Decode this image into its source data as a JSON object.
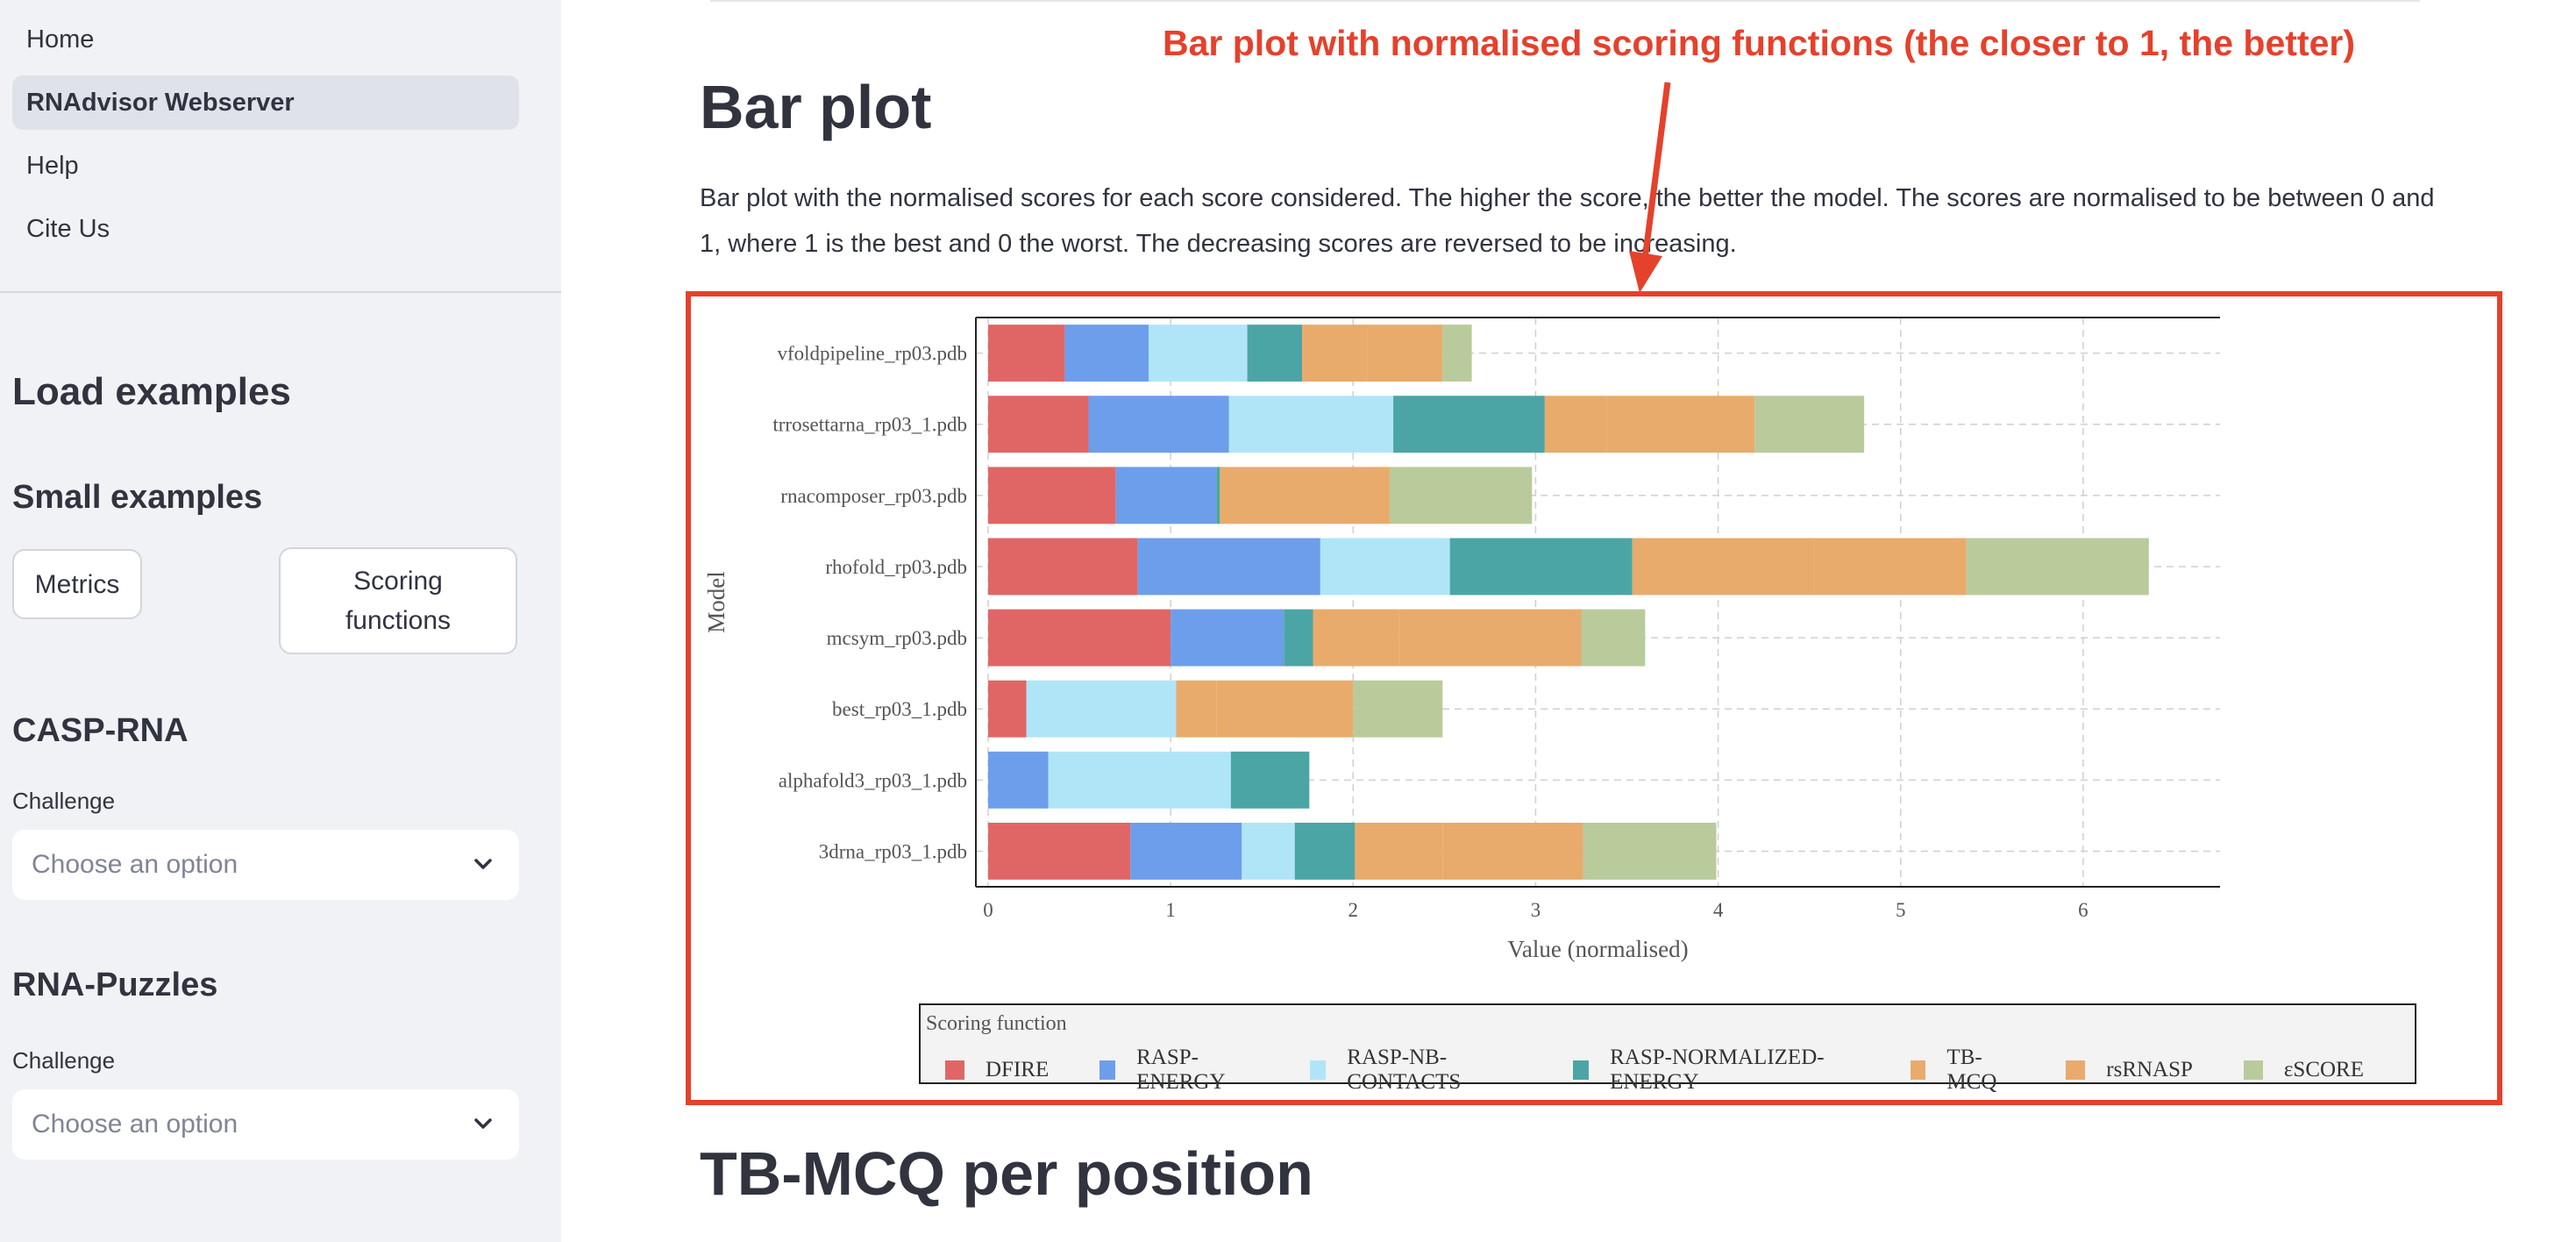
{
  "sidebar": {
    "nav": [
      {
        "label": "Home",
        "active": false
      },
      {
        "label": "RNAdvisor Webserver",
        "active": true
      },
      {
        "label": "Help",
        "active": false
      },
      {
        "label": "Cite Us",
        "active": false
      }
    ],
    "load_examples": "Load examples",
    "small_examples": "Small examples",
    "metrics_button": "Metrics",
    "scoring_button": "Scoring functions",
    "casp_title": "CASP-RNA",
    "casp_label": "Challenge",
    "casp_placeholder": "Choose an option",
    "puzzles_title": "RNA-Puzzles",
    "puzzles_label": "Challenge",
    "puzzles_placeholder": "Choose an option"
  },
  "main": {
    "title": "Bar plot",
    "description": "Bar plot with the normalised scores for each score considered. The higher the score, the better the model. The scores are normalised to be between 0 and 1, where 1 is the best and 0 the worst. The decreasing scores are reversed to be increasing.",
    "annotation": "Bar plot with normalised scoring functions (the closer to 1, the better)",
    "next_title": "TB-MCQ per position"
  },
  "colors": {
    "accent_annotation": "#e5412b",
    "DFIRE": "#e06666",
    "RASP-ENERGY": "#6d9eeb",
    "RASP-NB-CONTACTS": "#b0e5f8",
    "RASP-NORMALIZED-ENERGY": "#4ca5a5",
    "TB-MCQ": "#e9ab6b",
    "rsRNASP": "#e9ab6b",
    "εSCORE": "#b9cb9b"
  },
  "chart_data": {
    "type": "bar",
    "orientation": "horizontal",
    "stacked": true,
    "title": "",
    "xlabel": "Value (normalised)",
    "ylabel": "Model",
    "xlim": [
      0,
      6.75
    ],
    "xticks": [
      0,
      1,
      2,
      3,
      4,
      5,
      6
    ],
    "grid": true,
    "legend_title": "Scoring function",
    "legend_position": "bottom",
    "categories": [
      "vfoldpipeline_rp03.pdb",
      "trrosettarna_rp03_1.pdb",
      "rnacomposer_rp03.pdb",
      "rhofold_rp03.pdb",
      "mcsym_rp03.pdb",
      "best_rp03_1.pdb",
      "alphafold3_rp03_1.pdb",
      "3drna_rp03_1.pdb"
    ],
    "series": [
      {
        "name": "DFIRE",
        "values": [
          0.42,
          0.55,
          0.7,
          0.82,
          1.0,
          0.21,
          0.0,
          0.78
        ]
      },
      {
        "name": "RASP-ENERGY",
        "values": [
          0.46,
          0.77,
          0.55,
          1.0,
          0.62,
          0.0,
          0.33,
          0.61
        ]
      },
      {
        "name": "RASP-NB-CONTACTS",
        "values": [
          0.54,
          0.9,
          0.0,
          0.71,
          0.0,
          0.82,
          1.0,
          0.29
        ]
      },
      {
        "name": "RASP-NORMALIZED-ENERGY",
        "values": [
          0.3,
          0.83,
          0.02,
          1.0,
          0.16,
          0.0,
          0.43,
          0.33
        ]
      },
      {
        "name": "TB-MCQ",
        "values": [
          0.36,
          0.34,
          0.14,
          1.0,
          0.47,
          0.22,
          0.0,
          0.48
        ]
      },
      {
        "name": "rsRNASP",
        "values": [
          0.41,
          0.81,
          0.79,
          0.83,
          1.0,
          0.75,
          0.0,
          0.77
        ]
      },
      {
        "name": "εSCORE",
        "values": [
          0.16,
          0.6,
          0.78,
          1.0,
          0.35,
          0.49,
          0.0,
          0.73
        ]
      }
    ]
  }
}
